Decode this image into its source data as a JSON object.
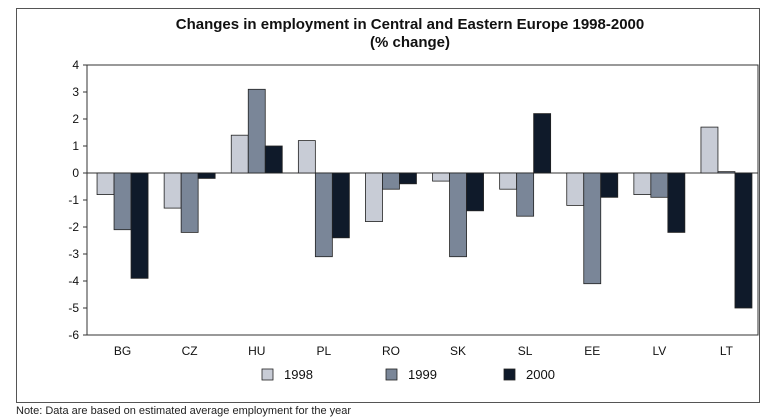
{
  "colors": {
    "1998": "#c8ccd6",
    "1999": "#7a8698",
    "2000": "#0f1a2a"
  },
  "note": "Note: Data are based on estimated average employment for the year",
  "chart_data": {
    "type": "bar",
    "title": "Changes in employment in Central and Eastern Europe 1998-2000",
    "subtitle": "(% change)",
    "xlabel": "",
    "ylabel": "",
    "ylim": [
      -6,
      4
    ],
    "yticks": [
      -6,
      -5,
      -4,
      -3,
      -2,
      -1,
      0,
      1,
      2,
      3,
      4
    ],
    "grid": false,
    "legend_position": "bottom",
    "categories": [
      "BG",
      "CZ",
      "HU",
      "PL",
      "RO",
      "SK",
      "SL",
      "EE",
      "LV",
      "LT"
    ],
    "series": [
      {
        "name": "1998",
        "values": [
          -0.8,
          -1.3,
          1.4,
          1.2,
          -1.8,
          -0.3,
          -0.6,
          -1.2,
          -0.8,
          1.7
        ]
      },
      {
        "name": "1999",
        "values": [
          -2.1,
          -2.2,
          3.1,
          -3.1,
          -0.6,
          -3.1,
          -1.6,
          -4.1,
          -0.9,
          0.05
        ]
      },
      {
        "name": "2000",
        "values": [
          -3.9,
          -0.2,
          1.0,
          -2.4,
          -0.4,
          -1.4,
          2.2,
          -0.9,
          -2.2,
          -5.0
        ]
      }
    ]
  }
}
